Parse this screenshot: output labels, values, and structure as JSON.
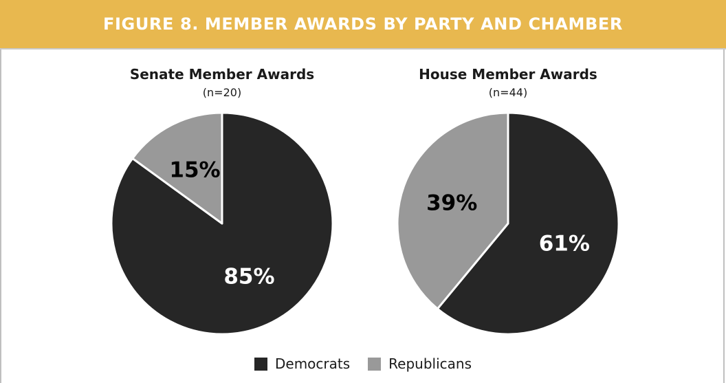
{
  "figure_title": "FIGURE 8. MEMBER AWARDS BY PARTY AND CHAMBER",
  "colors": {
    "banner": "#e8b84f",
    "democrats": "#262626",
    "republicans": "#999999",
    "slice_border": "#ffffff",
    "label_on_dark": "#ffffff",
    "label_on_light": "#000000"
  },
  "legend": [
    {
      "label": "Democrats",
      "color": "#262626"
    },
    {
      "label": "Republicans",
      "color": "#999999"
    }
  ],
  "chart_data": [
    {
      "type": "pie",
      "title": "Senate Member Awards",
      "subtitle": "(n=20)",
      "slices": [
        {
          "name": "Democrats",
          "value": 85,
          "label": "85%"
        },
        {
          "name": "Republicans",
          "value": 15,
          "label": "15%"
        }
      ]
    },
    {
      "type": "pie",
      "title": "House Member Awards",
      "subtitle": "(n=44)",
      "slices": [
        {
          "name": "Democrats",
          "value": 61,
          "label": "61%"
        },
        {
          "name": "Republicans",
          "value": 39,
          "label": "39%"
        }
      ]
    }
  ]
}
